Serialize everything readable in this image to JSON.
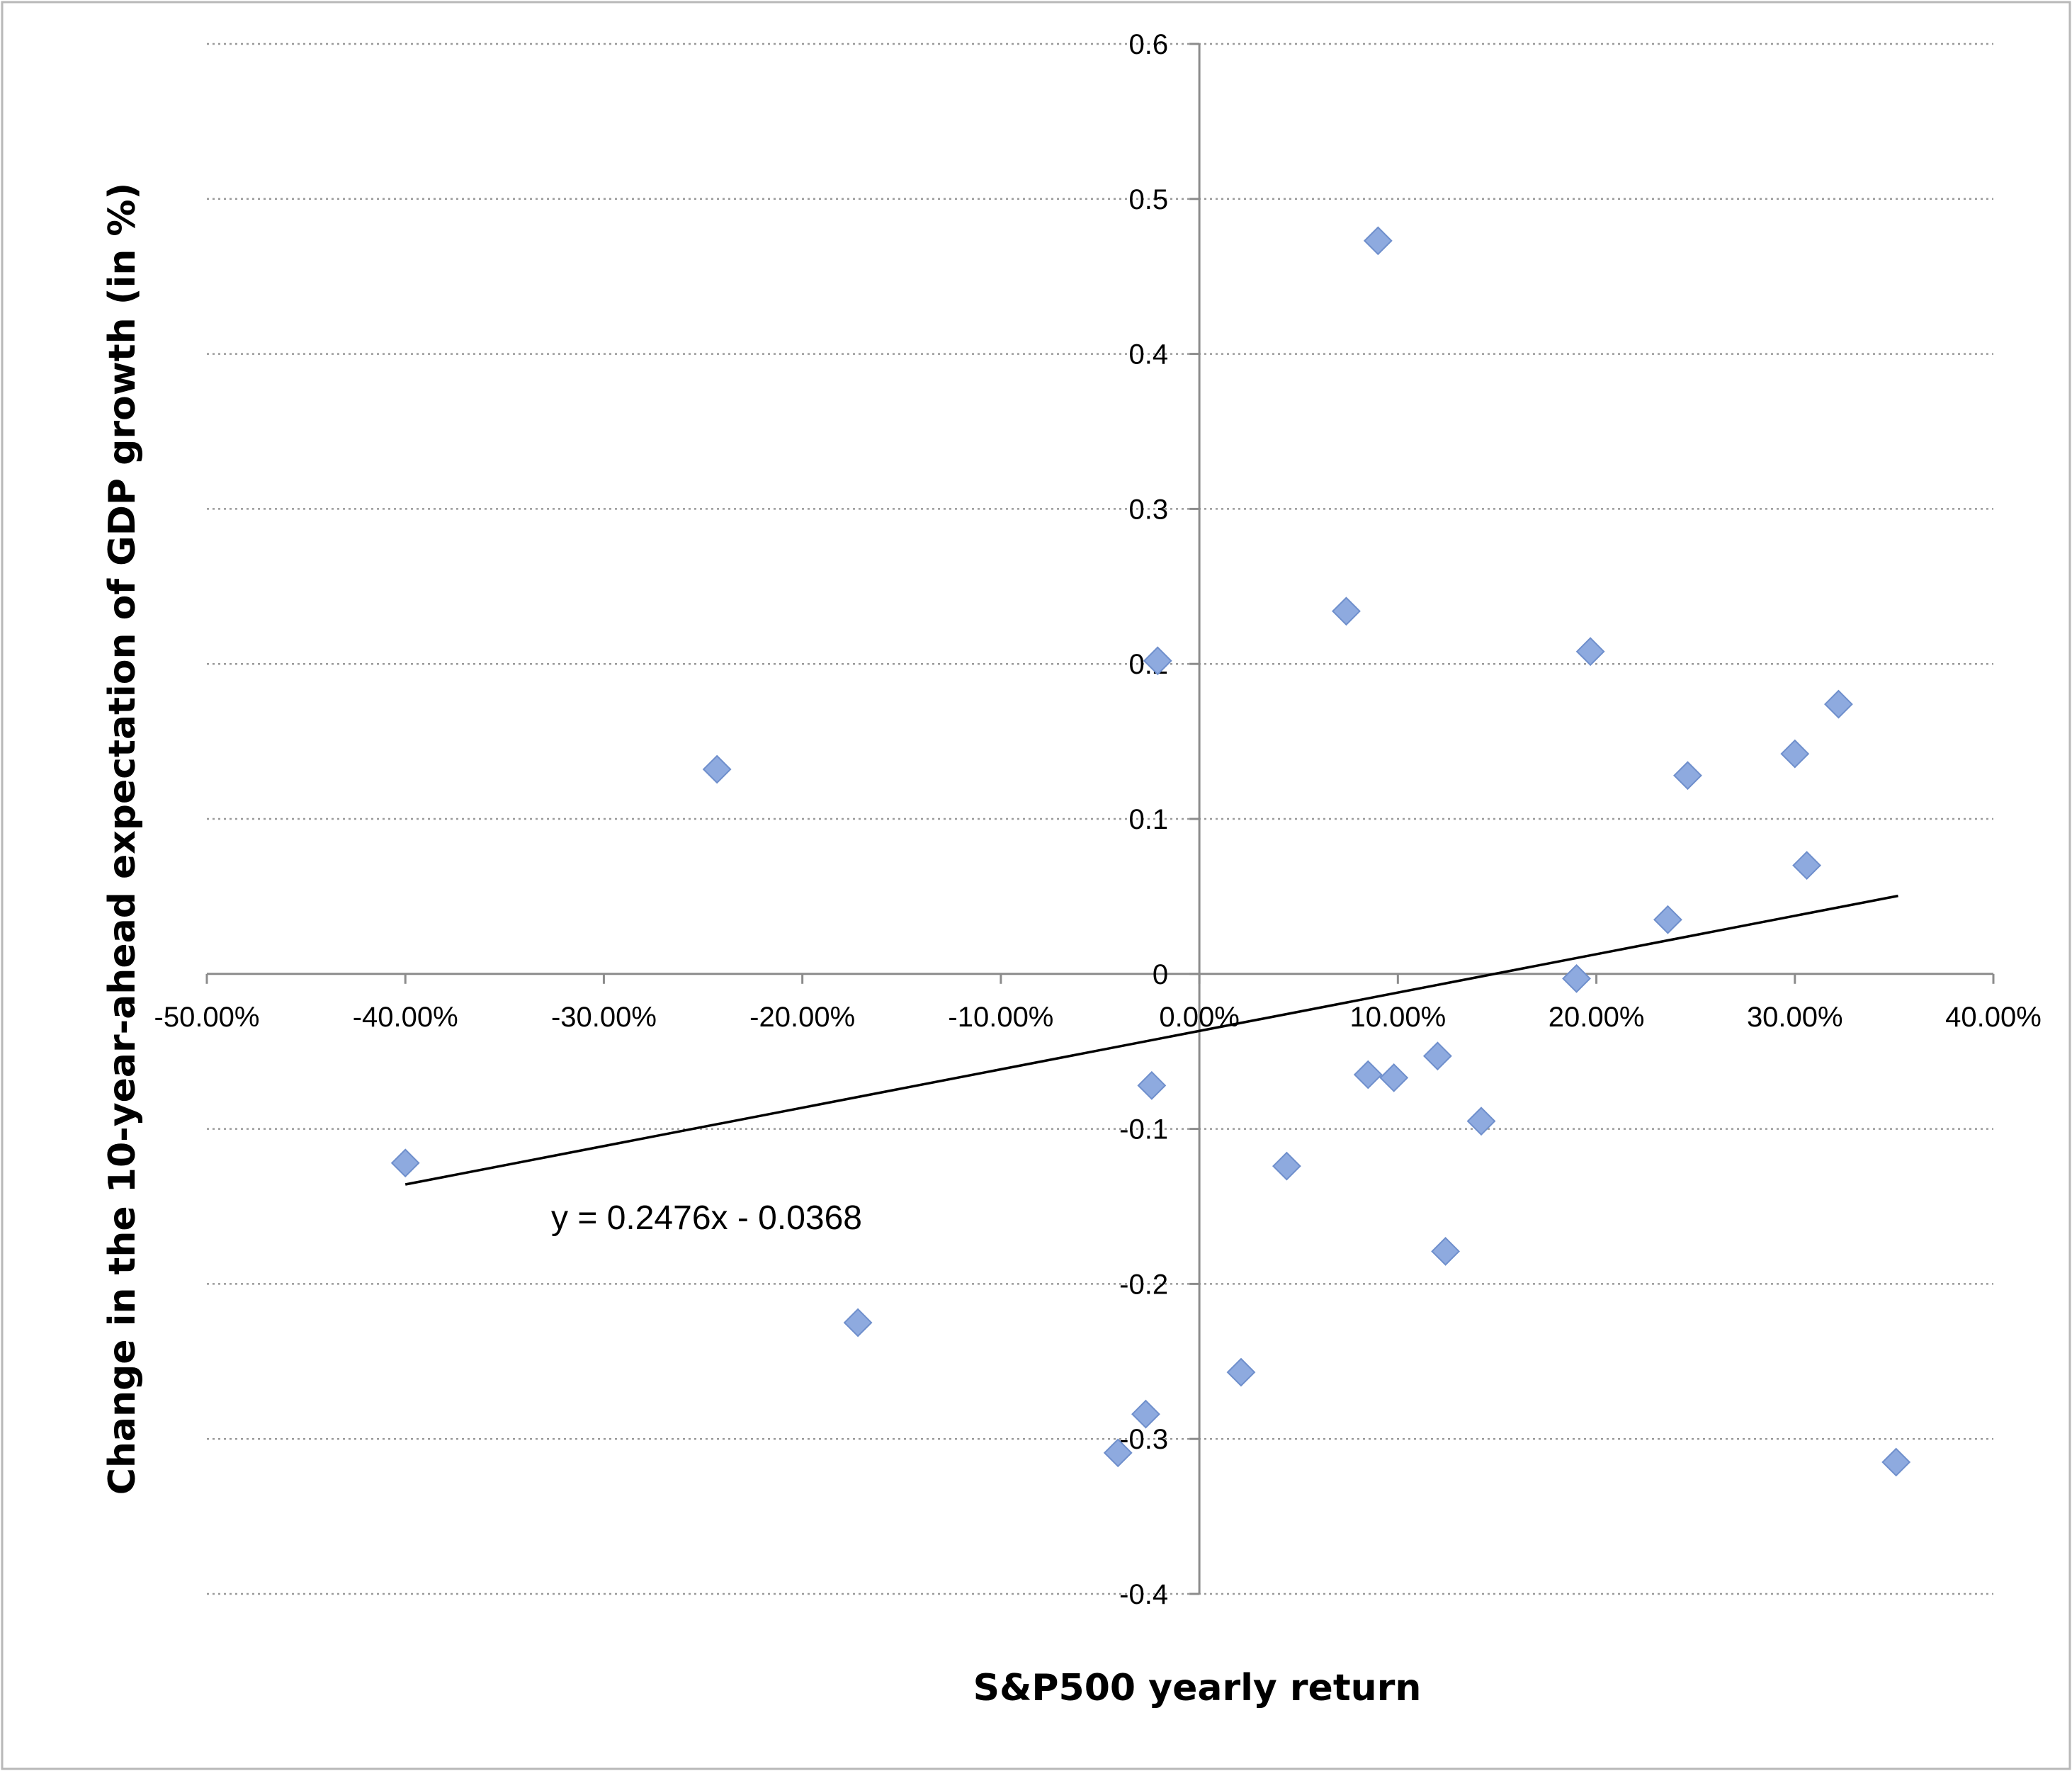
{
  "chart_data": {
    "type": "scatter",
    "xlabel": "S&P500 yearly return",
    "ylabel": "Change in the 10-year-ahead  expectation of GDP growth (in %)",
    "x_format": "percent2",
    "xlim": [
      -0.5,
      0.4
    ],
    "ylim": [
      -0.4,
      0.6
    ],
    "x_ticks": [
      -0.5,
      -0.4,
      -0.3,
      -0.2,
      -0.1,
      0.0,
      0.1,
      0.2,
      0.3,
      0.4
    ],
    "x_tick_labels": [
      "-50.00%",
      "-40.00%",
      "-30.00%",
      "-20.00%",
      "-10.00%",
      "0.00%",
      "10.00%",
      "20.00%",
      "30.00%",
      "40.00%"
    ],
    "y_ticks": [
      0.6,
      0.5,
      0.4,
      0.3,
      0.2,
      0.1,
      0,
      -0.1,
      -0.2,
      -0.3,
      -0.4
    ],
    "y_tick_labels": [
      "0.6",
      "0.5",
      "0.4",
      "0.3",
      "0.2",
      "0.1",
      "0",
      "-0.1",
      "-0.2",
      "-0.3",
      "-0.4"
    ],
    "grid": true,
    "marker_color": "#8eaadf",
    "points": [
      {
        "x": -0.4,
        "y": -0.122
      },
      {
        "x": -0.243,
        "y": 0.132
      },
      {
        "x": -0.172,
        "y": -0.225
      },
      {
        "x": -0.041,
        "y": -0.309
      },
      {
        "x": -0.027,
        "y": -0.284
      },
      {
        "x": -0.024,
        "y": -0.072
      },
      {
        "x": -0.021,
        "y": 0.202
      },
      {
        "x": 0.021,
        "y": -0.257
      },
      {
        "x": 0.044,
        "y": -0.124
      },
      {
        "x": 0.074,
        "y": 0.234
      },
      {
        "x": 0.085,
        "y": -0.065
      },
      {
        "x": 0.09,
        "y": 0.473
      },
      {
        "x": 0.098,
        "y": -0.067
      },
      {
        "x": 0.12,
        "y": -0.053
      },
      {
        "x": 0.124,
        "y": -0.179
      },
      {
        "x": 0.142,
        "y": -0.095
      },
      {
        "x": 0.19,
        "y": -0.003
      },
      {
        "x": 0.197,
        "y": 0.208
      },
      {
        "x": 0.236,
        "y": 0.035
      },
      {
        "x": 0.246,
        "y": 0.128
      },
      {
        "x": 0.3,
        "y": 0.142
      },
      {
        "x": 0.306,
        "y": 0.07
      },
      {
        "x": 0.322,
        "y": 0.174
      },
      {
        "x": 0.351,
        "y": -0.315
      }
    ],
    "trendline": {
      "slope": 0.2476,
      "intercept": -0.0368,
      "x_range": [
        -0.4,
        0.352
      ],
      "equation": "y = 0.2476x - 0.0368"
    }
  }
}
